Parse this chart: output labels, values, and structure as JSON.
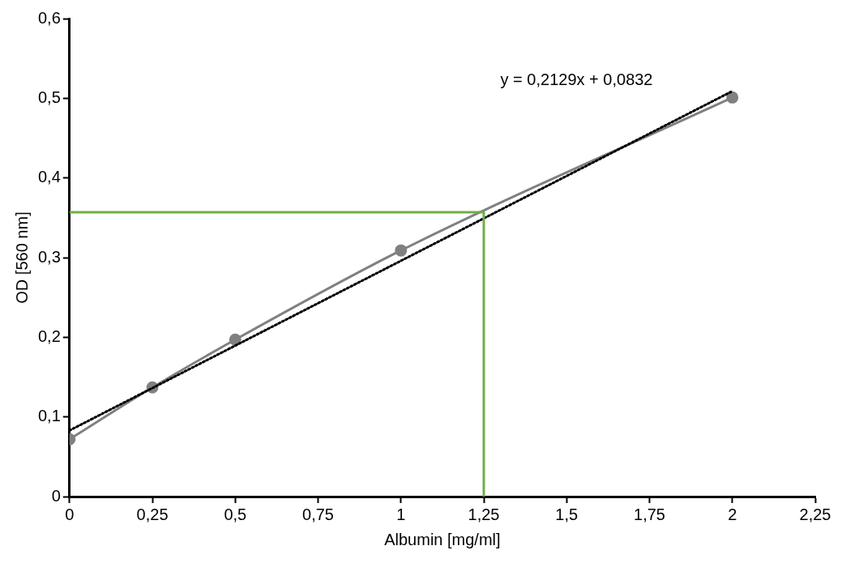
{
  "chart_data": {
    "type": "line",
    "xlabel": "Albumin [mg/ml]",
    "ylabel": "OD [560 nm]",
    "xlim": [
      0,
      2.25
    ],
    "xticks": [
      0,
      {
        "value": 0.25,
        "label": "0,25"
      },
      {
        "value": 0.5,
        "label": "0,5"
      },
      {
        "value": 0.75,
        "label": "0,75"
      },
      1,
      {
        "value": 1.25,
        "label": "1,25"
      },
      {
        "value": 1.5,
        "label": "1,5"
      },
      {
        "value": 1.75,
        "label": "1,75"
      },
      2,
      {
        "value": 2.25,
        "label": "2,25"
      }
    ],
    "ylim": [
      0,
      0.6
    ],
    "yticks": [
      0,
      {
        "value": 0.1,
        "label": "0,1"
      },
      {
        "value": 0.2,
        "label": "0,2"
      },
      {
        "value": 0.3,
        "label": "0,3"
      },
      {
        "value": 0.4,
        "label": "0,4"
      },
      {
        "value": 0.5,
        "label": "0,5"
      },
      {
        "value": 0.6,
        "label": "0,6"
      }
    ],
    "grid": false,
    "legend": false,
    "series": [
      {
        "color": "#70ad47",
        "marker": "none",
        "line_style": "solid",
        "x": [
          0,
          1.25,
          1.25
        ],
        "values": [
          0.357,
          0.357,
          0
        ]
      },
      {
        "color": "#000000",
        "marker": "none",
        "line_style": "dotted",
        "x": [
          0,
          2
        ],
        "values": [
          0.083,
          0.509
        ]
      },
      {
        "color": "#808080",
        "marker": "circle",
        "line_style": "solid",
        "x": [
          0,
          0.25,
          0.5,
          1,
          2
        ],
        "values": [
          0.072,
          0.137,
          0.197,
          0.309,
          0.501
        ]
      }
    ],
    "annotations": [
      "y = 0,2129x + 0,0832"
    ]
  }
}
